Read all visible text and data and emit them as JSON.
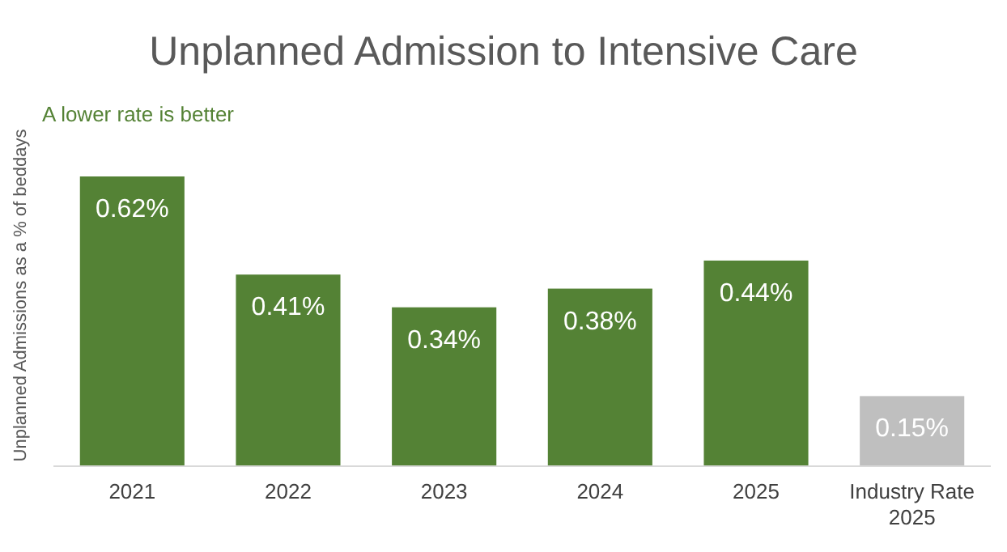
{
  "chart_data": {
    "type": "bar",
    "title": "Unplanned Admission to Intensive Care",
    "ylabel": "Unplanned Admissions as a % of beddays",
    "annotations": [
      "A lower rate is better"
    ],
    "categories": [
      "2021",
      "2022",
      "2023",
      "2024",
      "2025",
      "Industry Rate 2025"
    ],
    "values": [
      0.62,
      0.41,
      0.34,
      0.38,
      0.44,
      0.15
    ],
    "colors": [
      "#548235",
      "#548235",
      "#548235",
      "#548235",
      "#548235",
      "#bfbfbf"
    ],
    "value_labels": [
      "0.62%",
      "0.41%",
      "0.34%",
      "0.38%",
      "0.44%",
      "0.15%"
    ]
  }
}
